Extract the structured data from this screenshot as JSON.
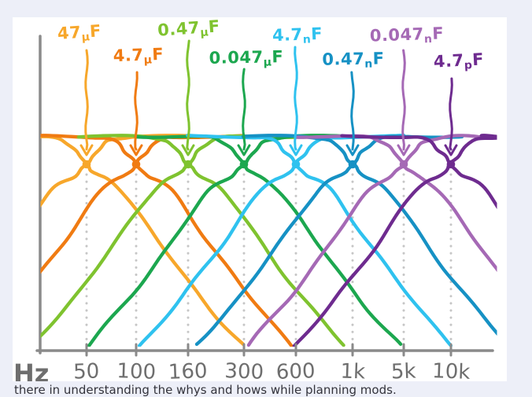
{
  "page": {
    "background_color": "#edeff8",
    "canvas_color": "#ffffff",
    "caption": "there in understanding the whys and hows while planning mods."
  },
  "chart_data": {
    "type": "line",
    "title": "",
    "subtitle": "",
    "description": "Hand-drawn RC filter response curves: for each capacitor value a high-pass and a low-pass curve cross at a marked dot at its cutoff frequency on a logarithmic Hz axis; an arrow points from each capacitor label down to its crossover point and a dotted line drops to the axis tick.",
    "xlabel": "Hz",
    "ylabel": "",
    "x_axis": {
      "unit_label": "Hz",
      "scale": "log",
      "tick_labels": [
        "50",
        "100",
        "160",
        "300",
        "600",
        "1k",
        "5k",
        "10k"
      ]
    },
    "grid": "off",
    "legend_position": "labels-above-curves",
    "axis_color": "#8a8a8a",
    "tick_text_color": "#6e6e6e",
    "dotted_line_color": "#c6c6c6",
    "curves_per_series": [
      "high-pass",
      "low-pass"
    ],
    "series": [
      {
        "label": "47μF",
        "value": "47",
        "si_prefix": "μ",
        "unit": "F",
        "cutoff_hz": 50,
        "cutoff_label": "50",
        "color": "#f7a72b"
      },
      {
        "label": "4.7μF",
        "value": "4.7",
        "si_prefix": "μ",
        "unit": "F",
        "cutoff_hz": 100,
        "cutoff_label": "100",
        "color": "#f07b12"
      },
      {
        "label": "0.47μF",
        "value": "0.47",
        "si_prefix": "μ",
        "unit": "F",
        "cutoff_hz": 160,
        "cutoff_label": "160",
        "color": "#7fc32f"
      },
      {
        "label": "0.047μF",
        "value": "0.047",
        "si_prefix": "μ",
        "unit": "F",
        "cutoff_hz": 300,
        "cutoff_label": "300",
        "color": "#1ca74f"
      },
      {
        "label": "4.7nF",
        "value": "4.7",
        "si_prefix": "n",
        "unit": "F",
        "cutoff_hz": 600,
        "cutoff_label": "600",
        "color": "#2fc2ef"
      },
      {
        "label": "0.47nF",
        "value": "0.47",
        "si_prefix": "n",
        "unit": "F",
        "cutoff_hz": 1000,
        "cutoff_label": "1k",
        "color": "#1691c4"
      },
      {
        "label": "0.047nF",
        "value": "0.047",
        "si_prefix": "n",
        "unit": "F",
        "cutoff_hz": 5000,
        "cutoff_label": "5k",
        "color": "#a569b5"
      },
      {
        "label": "4.7pF",
        "value": "4.7",
        "si_prefix": "p",
        "unit": "F",
        "cutoff_hz": 10000,
        "cutoff_label": "10k",
        "color": "#6e2b8f"
      }
    ]
  }
}
